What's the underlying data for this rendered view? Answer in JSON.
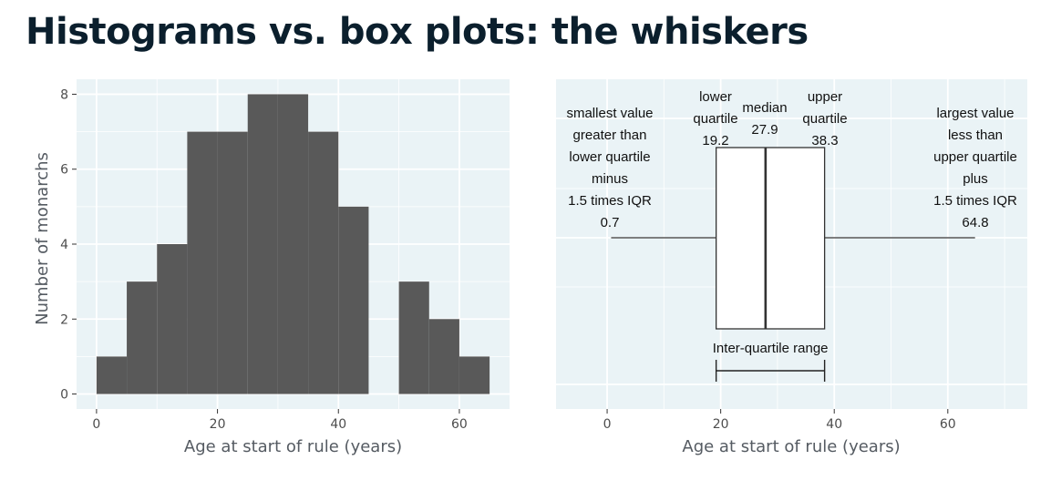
{
  "title": "Histograms vs. box plots: the whiskers",
  "chart_data": [
    {
      "type": "bar",
      "subtype": "histogram",
      "bins": [
        {
          "start": 0,
          "end": 5,
          "count": 1
        },
        {
          "start": 5,
          "end": 10,
          "count": 3
        },
        {
          "start": 10,
          "end": 15,
          "count": 4
        },
        {
          "start": 15,
          "end": 20,
          "count": 7
        },
        {
          "start": 20,
          "end": 25,
          "count": 7
        },
        {
          "start": 25,
          "end": 30,
          "count": 8
        },
        {
          "start": 30,
          "end": 35,
          "count": 8
        },
        {
          "start": 35,
          "end": 40,
          "count": 7
        },
        {
          "start": 40,
          "end": 45,
          "count": 5
        },
        {
          "start": 45,
          "end": 50,
          "count": 0
        },
        {
          "start": 50,
          "end": 55,
          "count": 3
        },
        {
          "start": 55,
          "end": 60,
          "count": 2
        },
        {
          "start": 60,
          "end": 65,
          "count": 1
        }
      ],
      "xlabel": "Age at start of rule (years)",
      "ylabel": "Number of monarchs",
      "xlim": [
        -3.3,
        68.3
      ],
      "ylim": [
        -0.4,
        8.4
      ],
      "xticks": [
        0,
        20,
        40,
        60
      ],
      "yticks": [
        0,
        2,
        4,
        6,
        8
      ],
      "bar_color": "#595959",
      "panel_bg": "#eaf3f6",
      "grid": true
    },
    {
      "type": "box",
      "stats": {
        "whisker_low": 0.7,
        "q1": 19.2,
        "median": 27.9,
        "q3": 38.3,
        "whisker_high": 64.8
      },
      "xlabel": "Age at start of rule (years)",
      "xlim": [
        -9,
        74
      ],
      "xticks": [
        0,
        20,
        40,
        60
      ],
      "panel_bg": "#eaf3f6",
      "grid": true,
      "annotations": {
        "low_whisker": [
          "smallest value",
          "greater than",
          "lower quartile",
          "minus",
          "1.5 times IQR",
          "0.7"
        ],
        "q1": [
          "lower",
          "quartile",
          "19.2"
        ],
        "median": [
          "median",
          "27.9"
        ],
        "q3": [
          "upper",
          "quartile",
          "38.3"
        ],
        "high_whisker": [
          "largest value",
          "less than",
          "upper quartile",
          "plus",
          "1.5 times IQR",
          "64.8"
        ],
        "iqr": "Inter-quartile range"
      }
    }
  ]
}
